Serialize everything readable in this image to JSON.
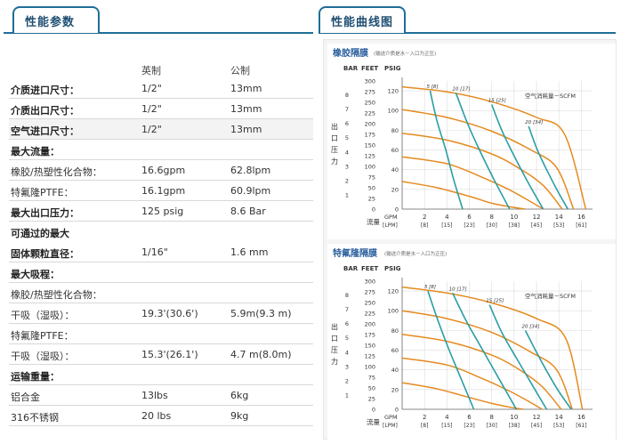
{
  "left_tab": {
    "title": "性能参数"
  },
  "right_tab": {
    "title": "性能曲线图"
  },
  "specs": {
    "headers": [
      "",
      "英制",
      "公制"
    ],
    "rows": [
      {
        "label": "介质进口尺寸：",
        "imperial": "1/2\"",
        "metric": "13mm",
        "bold": true
      },
      {
        "label": "介质出口尺寸：",
        "imperial": "1/2\"",
        "metric": "13mm",
        "bold": true
      },
      {
        "label": "空气进口尺寸：",
        "imperial": "1/2\"",
        "metric": "13mm",
        "bold": true
      },
      {
        "label": "最大流量：",
        "imperial": "",
        "metric": "",
        "bold": true
      },
      {
        "label": "橡胶/热塑性化合物：",
        "imperial": "16.6gpm",
        "metric": "62.8lpm",
        "bold": false
      },
      {
        "label": "特氟隆PTFE：",
        "imperial": "16.1gpm",
        "metric": "60.9lpm",
        "bold": false
      },
      {
        "label": "最大出口压力：",
        "imperial": "125 psig",
        "metric": "8.6 Bar",
        "bold": true
      },
      {
        "label": "可通过的最大",
        "imperial": "",
        "metric": "",
        "bold": true
      },
      {
        "label": "固体颗粒直径：",
        "imperial": "1/16\"",
        "metric": "1.6 mm",
        "bold": true
      },
      {
        "label": "最大吸程：",
        "imperial": "",
        "metric": "",
        "bold": true
      },
      {
        "label": "橡胶/热塑性化合物：",
        "imperial": "",
        "metric": "",
        "bold": false
      },
      {
        "label": "干吸（湿吸）：",
        "imperial": "19.3'(30.6')",
        "metric": "5.9m(9.3 m)",
        "bold": false
      },
      {
        "label": "特氟隆PTFE：",
        "imperial": "",
        "metric": "",
        "bold": false
      },
      {
        "label": "干吸（湿吸）：",
        "imperial": "15.3'(26.1')",
        "metric": "4.7 m(8.0m)",
        "bold": false
      },
      {
        "label": "运输重量：",
        "imperial": "",
        "metric": "",
        "bold": true
      },
      {
        "label": "铝合金",
        "imperial": "13lbs",
        "metric": "6kg",
        "bold": false
      },
      {
        "label": "316不锈钢",
        "imperial": "20 lbs",
        "metric": "9kg",
        "bold": false
      }
    ]
  },
  "chart_data": [
    {
      "type": "line",
      "title": "橡胶隔膜",
      "subtitle": "(输送介质是水－入口为正压)",
      "ylabel_vertical": "出口压力",
      "axis_headers": [
        "BAR",
        "FEET",
        "PSIG"
      ],
      "ylim": [
        0,
        130
      ],
      "xlim": [
        0,
        17
      ],
      "bar_ticks": [
        "8",
        "7",
        "6",
        "5",
        "4",
        "3",
        "2",
        "1"
      ],
      "feet_ticks": [
        "300",
        "275",
        "250",
        "225",
        "200",
        "175",
        "150",
        "125",
        "100",
        "75",
        "50",
        "25",
        "0"
      ],
      "psig_ticks": [
        "120",
        "100",
        "80",
        "60",
        "40",
        "20",
        "0"
      ],
      "x_label": "流量",
      "x_unit_top": "GPM",
      "x_unit_bottom": "[LPM]",
      "x_ticks_top": [
        "2",
        "4",
        "6",
        "8",
        "10",
        "12",
        "14",
        "16"
      ],
      "x_ticks_bottom": [
        "[8]",
        "[15]",
        "[23]",
        "[30]",
        "[38]",
        "[45]",
        "[53]",
        "[61]"
      ],
      "air_legend": "空气消耗量－SCFM",
      "air_labels": [
        "5 [8]",
        "10 [17]",
        "15 [25]",
        "20 [34]"
      ],
      "series": [
        {
          "name": "",
          "role": "pressure",
          "x": [
            0,
            4,
            8,
            12,
            14.5,
            16.4
          ],
          "y": [
            124,
            119,
            109,
            93,
            76,
            0
          ]
        },
        {
          "name": "",
          "role": "pressure",
          "x": [
            0,
            4,
            8,
            11.5,
            13.8,
            15.3
          ],
          "y": [
            101,
            93,
            79,
            60,
            42,
            0
          ]
        },
        {
          "name": "",
          "role": "pressure",
          "x": [
            0,
            4,
            8,
            10.5,
            12.6,
            14.3
          ],
          "y": [
            77,
            70,
            56,
            41,
            24,
            0
          ]
        },
        {
          "name": "",
          "role": "pressure",
          "x": [
            0,
            4,
            7,
            9.5,
            11.4,
            12.6
          ],
          "y": [
            53,
            46,
            33,
            20,
            8,
            0
          ]
        },
        {
          "name": "",
          "role": "pressure",
          "x": [
            0,
            3,
            6,
            8,
            9.8,
            11
          ],
          "y": [
            28,
            22,
            13,
            6,
            2,
            0
          ]
        },
        {
          "name": "",
          "role": "air",
          "x": [
            2.5,
            3.1,
            3.9,
            4.6,
            5.4
          ],
          "y": [
            120,
            90,
            60,
            30,
            0
          ]
        },
        {
          "name": "",
          "role": "air",
          "x": [
            4.8,
            5.8,
            6.9,
            8.2,
            9.6
          ],
          "y": [
            118,
            88,
            60,
            30,
            0
          ]
        },
        {
          "name": "",
          "role": "air",
          "x": [
            8,
            8.9,
            10,
            11.3,
            12.6
          ],
          "y": [
            106,
            80,
            54,
            26,
            0
          ]
        },
        {
          "name": "",
          "role": "air",
          "x": [
            11.3,
            12,
            12.9,
            13.9,
            14.8
          ],
          "y": [
            84,
            62,
            40,
            18,
            0
          ]
        }
      ]
    },
    {
      "type": "line",
      "title": "特氟隆隔膜",
      "subtitle": "(输送介质是水－入口为正压)",
      "ylabel_vertical": "出口压力",
      "axis_headers": [
        "BAR",
        "FEET",
        "PSIG"
      ],
      "ylim": [
        0,
        130
      ],
      "xlim": [
        0,
        17
      ],
      "bar_ticks": [
        "8",
        "7",
        "6",
        "5",
        "4",
        "3",
        "2",
        "1"
      ],
      "feet_ticks": [
        "300",
        "275",
        "250",
        "225",
        "200",
        "175",
        "150",
        "125",
        "100",
        "75",
        "50",
        "25",
        "0"
      ],
      "psig_ticks": [
        "120",
        "100",
        "80",
        "60",
        "40",
        "20",
        "0"
      ],
      "x_label": "流量",
      "x_unit_top": "GPM",
      "x_unit_bottom": "[LPM]",
      "x_ticks_top": [
        "2",
        "4",
        "6",
        "8",
        "10",
        "12",
        "14",
        "16"
      ],
      "x_ticks_bottom": [
        "[8]",
        "[15]",
        "[23]",
        "[30]",
        "[38]",
        "[45]",
        "[53]",
        "[61]"
      ],
      "air_legend": "空气消耗量－SCFM",
      "air_labels": [
        "5 [8]",
        "10 [17]",
        "15 [25]",
        "20 [34]"
      ],
      "series": [
        {
          "name": "",
          "role": "pressure",
          "x": [
            0,
            4,
            8,
            12,
            14.6,
            16.1
          ],
          "y": [
            124,
            118,
            108,
            92,
            72,
            0
          ]
        },
        {
          "name": "",
          "role": "pressure",
          "x": [
            0,
            4,
            8,
            11.5,
            13.8,
            15.2
          ],
          "y": [
            100,
            92,
            78,
            58,
            40,
            0
          ]
        },
        {
          "name": "",
          "role": "pressure",
          "x": [
            0,
            4,
            8,
            10.5,
            12.5,
            14.2
          ],
          "y": [
            76,
            69,
            55,
            40,
            23,
            0
          ]
        },
        {
          "name": "",
          "role": "pressure",
          "x": [
            0,
            4,
            7,
            9.5,
            11.3,
            12.5
          ],
          "y": [
            52,
            45,
            32,
            19,
            8,
            0
          ]
        },
        {
          "name": "",
          "role": "pressure",
          "x": [
            0,
            3,
            6,
            8,
            9.7,
            10.8
          ],
          "y": [
            27,
            21,
            12,
            6,
            2,
            0
          ]
        },
        {
          "name": "",
          "role": "air",
          "x": [
            2.3,
            3.2,
            4.2,
            5.3,
            6.4
          ],
          "y": [
            120,
            90,
            60,
            30,
            0
          ]
        },
        {
          "name": "",
          "role": "air",
          "x": [
            4.5,
            5.8,
            7.2,
            8.7,
            10.2
          ],
          "y": [
            118,
            88,
            60,
            30,
            0
          ]
        },
        {
          "name": "",
          "role": "air",
          "x": [
            7.8,
            8.9,
            10.2,
            11.6,
            12.9
          ],
          "y": [
            106,
            78,
            52,
            25,
            0
          ]
        },
        {
          "name": "",
          "role": "air",
          "x": [
            11,
            11.9,
            12.9,
            14,
            15.1
          ],
          "y": [
            80,
            60,
            39,
            18,
            0
          ]
        }
      ]
    }
  ],
  "colors": {
    "tab_border": "#1f6d99",
    "tab_text": "#1f4f72",
    "pressure_curve": "#e58a1f",
    "air_curve": "#2a9ea6",
    "title_blue": "#2b5f9e",
    "grid": "#dddddd"
  }
}
